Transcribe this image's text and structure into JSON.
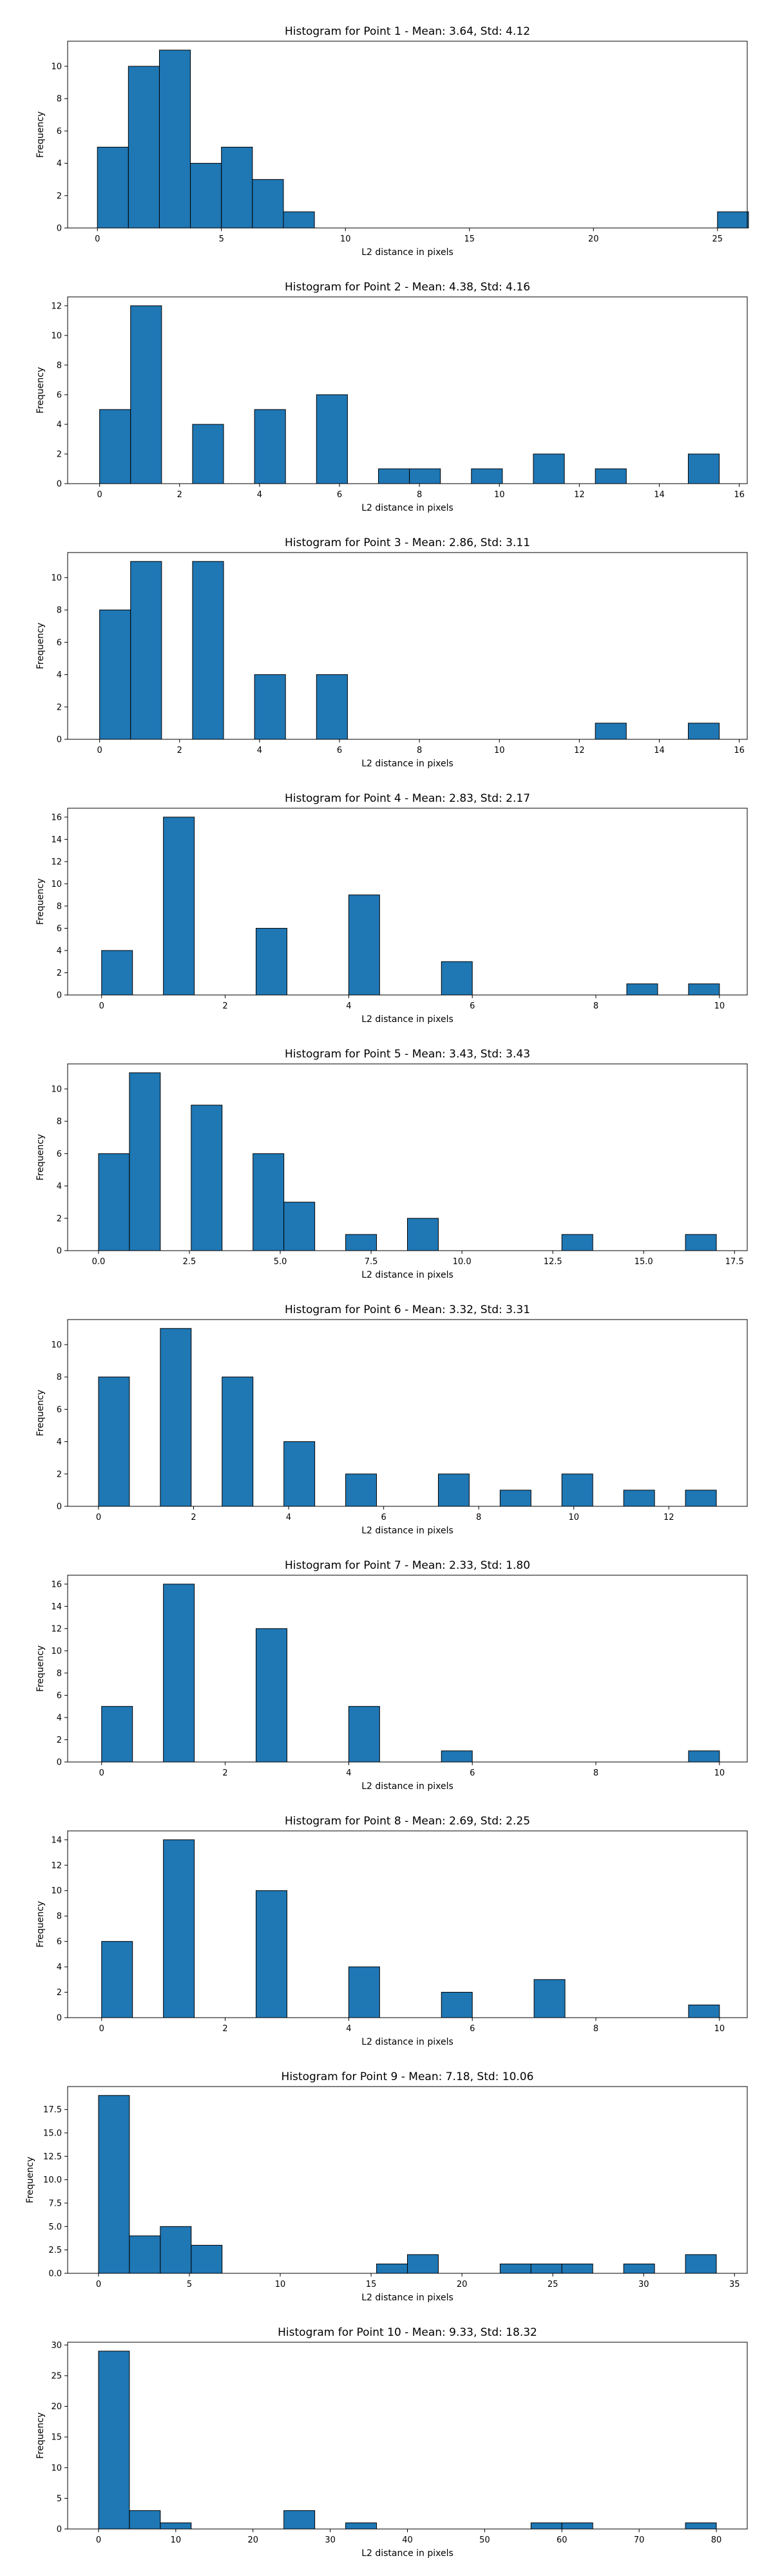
{
  "style": {
    "bar_color": "#1f77b4",
    "edge_color": "#000000",
    "background": "#ffffff"
  },
  "chart_data": [
    {
      "type": "bar",
      "title": "Histogram for Point 1 - Mean: 3.64, Std: 4.12",
      "xlabel": "L2 distance in pixels",
      "ylabel": "Frequency",
      "xlim": [
        -1.2,
        26.2
      ],
      "ylim": [
        0,
        11.55
      ],
      "xticks": [
        0,
        5,
        10,
        15,
        20,
        25
      ],
      "xtick_labels": [
        "0",
        "5",
        "10",
        "15",
        "20",
        "25"
      ],
      "yticks": [
        0,
        2,
        4,
        6,
        8,
        10
      ],
      "ytick_labels": [
        "0",
        "2",
        "4",
        "6",
        "8",
        "10"
      ],
      "bin_edges": [
        0,
        1.25,
        2.5,
        3.75,
        5,
        6.25,
        7.5,
        8.75,
        10,
        11.25,
        12.5,
        13.75,
        15,
        16.25,
        17.5,
        18.75,
        20,
        21.25,
        22.5,
        23.75,
        25,
        26.25
      ],
      "counts": [
        5,
        10,
        11,
        4,
        5,
        3,
        1,
        0,
        0,
        0,
        0,
        0,
        0,
        0,
        0,
        0,
        0,
        0,
        0,
        0,
        1
      ]
    },
    {
      "type": "bar",
      "title": "Histogram for Point 2 - Mean: 4.38, Std: 4.16",
      "xlabel": "L2 distance in pixels",
      "ylabel": "Frequency",
      "xlim": [
        -0.8,
        16.2
      ],
      "ylim": [
        0,
        12.6
      ],
      "xticks": [
        0,
        2,
        4,
        6,
        8,
        10,
        12,
        14,
        16
      ],
      "xtick_labels": [
        "0",
        "2",
        "4",
        "6",
        "8",
        "10",
        "12",
        "14",
        "16"
      ],
      "yticks": [
        0,
        2,
        4,
        6,
        8,
        10,
        12
      ],
      "ytick_labels": [
        "0",
        "2",
        "4",
        "6",
        "8",
        "10",
        "12"
      ],
      "bin_edges": [
        0,
        0.775,
        1.55,
        2.325,
        3.1,
        3.875,
        4.65,
        5.425,
        6.2,
        6.975,
        7.75,
        8.525,
        9.3,
        10.075,
        10.85,
        11.625,
        12.4,
        13.175,
        13.95,
        14.725,
        15.5
      ],
      "counts": [
        5,
        12,
        0,
        4,
        0,
        5,
        0,
        6,
        0,
        1,
        1,
        0,
        1,
        0,
        2,
        0,
        1,
        0,
        0,
        2
      ]
    },
    {
      "type": "bar",
      "title": "Histogram for Point 3 - Mean: 2.86, Std: 3.11",
      "xlabel": "L2 distance in pixels",
      "ylabel": "Frequency",
      "xlim": [
        -0.8,
        16.2
      ],
      "ylim": [
        0,
        11.55
      ],
      "xticks": [
        0,
        2,
        4,
        6,
        8,
        10,
        12,
        14,
        16
      ],
      "xtick_labels": [
        "0",
        "2",
        "4",
        "6",
        "8",
        "10",
        "12",
        "14",
        "16"
      ],
      "yticks": [
        0,
        2,
        4,
        6,
        8,
        10
      ],
      "ytick_labels": [
        "0",
        "2",
        "4",
        "6",
        "8",
        "10"
      ],
      "bin_edges": [
        0,
        0.775,
        1.55,
        2.325,
        3.1,
        3.875,
        4.65,
        5.425,
        6.2,
        6.975,
        7.75,
        8.525,
        9.3,
        10.075,
        10.85,
        11.625,
        12.4,
        13.175,
        13.95,
        14.725,
        15.5
      ],
      "counts": [
        8,
        11,
        0,
        11,
        0,
        4,
        0,
        4,
        0,
        0,
        0,
        0,
        0,
        0,
        0,
        0,
        1,
        0,
        0,
        1
      ]
    },
    {
      "type": "bar",
      "title": "Histogram for Point 4 - Mean: 2.83, Std: 2.17",
      "xlabel": "L2 distance in pixels",
      "ylabel": "Frequency",
      "xlim": [
        -0.55,
        10.45
      ],
      "ylim": [
        0,
        16.8
      ],
      "xticks": [
        0,
        2,
        4,
        6,
        8,
        10
      ],
      "xtick_labels": [
        "0",
        "2",
        "4",
        "6",
        "8",
        "10"
      ],
      "yticks": [
        0,
        2,
        4,
        6,
        8,
        10,
        12,
        14,
        16
      ],
      "ytick_labels": [
        "0",
        "2",
        "4",
        "6",
        "8",
        "10",
        "12",
        "14",
        "16"
      ],
      "bin_edges": [
        0,
        0.5,
        1,
        1.5,
        2,
        2.5,
        3,
        3.5,
        4,
        4.5,
        5,
        5.5,
        6,
        6.5,
        7,
        7.5,
        8,
        8.5,
        9,
        9.5,
        10
      ],
      "counts": [
        4,
        0,
        16,
        0,
        0,
        6,
        0,
        0,
        9,
        0,
        0,
        3,
        0,
        0,
        0,
        0,
        0,
        1,
        0,
        1
      ]
    },
    {
      "type": "bar",
      "title": "Histogram for Point 5 - Mean: 3.43, Std: 3.43",
      "xlabel": "L2 distance in pixels",
      "ylabel": "Frequency",
      "xlim": [
        -0.85,
        17.85
      ],
      "ylim": [
        0,
        11.55
      ],
      "xticks": [
        0,
        2.5,
        5,
        7.5,
        10,
        12.5,
        15,
        17.5
      ],
      "xtick_labels": [
        "0.0",
        "2.5",
        "5.0",
        "7.5",
        "10.0",
        "12.5",
        "15.0",
        "17.5"
      ],
      "yticks": [
        0,
        2,
        4,
        6,
        8,
        10
      ],
      "ytick_labels": [
        "0",
        "2",
        "4",
        "6",
        "8",
        "10"
      ],
      "bin_edges": [
        0,
        0.85,
        1.7,
        2.55,
        3.4,
        4.25,
        5.1,
        5.95,
        6.8,
        7.65,
        8.5,
        9.35,
        10.2,
        11.05,
        11.9,
        12.75,
        13.6,
        14.45,
        15.3,
        16.15,
        17
      ],
      "counts": [
        6,
        11,
        0,
        9,
        0,
        6,
        3,
        0,
        1,
        0,
        2,
        0,
        0,
        0,
        0,
        1,
        0,
        0,
        0,
        1
      ]
    },
    {
      "type": "bar",
      "title": "Histogram for Point 6 - Mean: 3.32, Std: 3.31",
      "xlabel": "L2 distance in pixels",
      "ylabel": "Frequency",
      "xlim": [
        -0.65,
        13.65
      ],
      "ylim": [
        0,
        11.55
      ],
      "xticks": [
        0,
        2,
        4,
        6,
        8,
        10,
        12
      ],
      "xtick_labels": [
        "0",
        "2",
        "4",
        "6",
        "8",
        "10",
        "12"
      ],
      "yticks": [
        0,
        2,
        4,
        6,
        8,
        10
      ],
      "ytick_labels": [
        "0",
        "2",
        "4",
        "6",
        "8",
        "10"
      ],
      "bin_edges": [
        0,
        0.65,
        1.3,
        1.95,
        2.6,
        3.25,
        3.9,
        4.55,
        5.2,
        5.85,
        6.5,
        7.15,
        7.8,
        8.45,
        9.1,
        9.75,
        10.4,
        11.05,
        11.7,
        12.35,
        13
      ],
      "counts": [
        8,
        0,
        11,
        0,
        8,
        0,
        4,
        0,
        2,
        0,
        0,
        2,
        0,
        1,
        0,
        2,
        0,
        1,
        0,
        1
      ]
    },
    {
      "type": "bar",
      "title": "Histogram for Point 7 - Mean: 2.33, Std: 1.80",
      "xlabel": "L2 distance in pixels",
      "ylabel": "Frequency",
      "xlim": [
        -0.55,
        10.45
      ],
      "ylim": [
        0,
        16.8
      ],
      "xticks": [
        0,
        2,
        4,
        6,
        8,
        10
      ],
      "xtick_labels": [
        "0",
        "2",
        "4",
        "6",
        "8",
        "10"
      ],
      "yticks": [
        0,
        2,
        4,
        6,
        8,
        10,
        12,
        14,
        16
      ],
      "ytick_labels": [
        "0",
        "2",
        "4",
        "6",
        "8",
        "10",
        "12",
        "14",
        "16"
      ],
      "bin_edges": [
        0,
        0.5,
        1,
        1.5,
        2,
        2.5,
        3,
        3.5,
        4,
        4.5,
        5,
        5.5,
        6,
        6.5,
        7,
        7.5,
        8,
        8.5,
        9,
        9.5,
        10
      ],
      "counts": [
        5,
        0,
        16,
        0,
        0,
        12,
        0,
        0,
        5,
        0,
        0,
        1,
        0,
        0,
        0,
        0,
        0,
        0,
        0,
        1
      ]
    },
    {
      "type": "bar",
      "title": "Histogram for Point 8 - Mean: 2.69, Std: 2.25",
      "xlabel": "L2 distance in pixels",
      "ylabel": "Frequency",
      "xlim": [
        -0.55,
        10.45
      ],
      "ylim": [
        0,
        14.7
      ],
      "xticks": [
        0,
        2,
        4,
        6,
        8,
        10
      ],
      "xtick_labels": [
        "0",
        "2",
        "4",
        "6",
        "8",
        "10"
      ],
      "yticks": [
        0,
        2,
        4,
        6,
        8,
        10,
        12,
        14
      ],
      "ytick_labels": [
        "0",
        "2",
        "4",
        "6",
        "8",
        "10",
        "12",
        "14"
      ],
      "bin_edges": [
        0,
        0.5,
        1,
        1.5,
        2,
        2.5,
        3,
        3.5,
        4,
        4.5,
        5,
        5.5,
        6,
        6.5,
        7,
        7.5,
        8,
        8.5,
        9,
        9.5,
        10
      ],
      "counts": [
        6,
        0,
        14,
        0,
        0,
        10,
        0,
        0,
        4,
        0,
        0,
        2,
        0,
        0,
        3,
        0,
        0,
        0,
        0,
        1
      ]
    },
    {
      "type": "bar",
      "title": "Histogram for Point 9 - Mean: 7.18, Std: 10.06",
      "xlabel": "L2 distance in pixels",
      "ylabel": "Frequency",
      "xlim": [
        -1.7,
        35.7
      ],
      "ylim": [
        0,
        19.95
      ],
      "xticks": [
        0,
        5,
        10,
        15,
        20,
        25,
        30,
        35
      ],
      "xtick_labels": [
        "0",
        "5",
        "10",
        "15",
        "20",
        "25",
        "30",
        "35"
      ],
      "yticks": [
        0,
        2.5,
        5,
        7.5,
        10,
        12.5,
        15,
        17.5
      ],
      "ytick_labels": [
        "0.0",
        "2.5",
        "5.0",
        "7.5",
        "10.0",
        "12.5",
        "15.0",
        "17.5"
      ],
      "bin_edges": [
        0,
        1.7,
        3.4,
        5.1,
        6.8,
        8.5,
        10.2,
        11.9,
        13.6,
        15.3,
        17,
        18.7,
        20.4,
        22.1,
        23.8,
        25.5,
        27.2,
        28.9,
        30.6,
        32.3,
        34
      ],
      "counts": [
        19,
        4,
        5,
        3,
        0,
        0,
        0,
        0,
        0,
        1,
        2,
        0,
        0,
        1,
        1,
        1,
        0,
        1,
        0,
        2
      ]
    },
    {
      "type": "bar",
      "title": "Histogram for Point 10 - Mean: 9.33, Std: 18.32",
      "xlabel": "L2 distance in pixels",
      "ylabel": "Frequency",
      "xlim": [
        -4,
        84
      ],
      "ylim": [
        0,
        30.45
      ],
      "xticks": [
        0,
        10,
        20,
        30,
        40,
        50,
        60,
        70,
        80
      ],
      "xtick_labels": [
        "0",
        "10",
        "20",
        "30",
        "40",
        "50",
        "60",
        "70",
        "80"
      ],
      "yticks": [
        0,
        5,
        10,
        15,
        20,
        25,
        30
      ],
      "ytick_labels": [
        "0",
        "5",
        "10",
        "15",
        "20",
        "25",
        "30"
      ],
      "bin_edges": [
        0,
        4,
        8,
        12,
        16,
        20,
        24,
        28,
        32,
        36,
        40,
        44,
        48,
        52,
        56,
        60,
        64,
        68,
        72,
        76,
        80
      ],
      "counts": [
        29,
        3,
        1,
        0,
        0,
        0,
        3,
        0,
        1,
        0,
        0,
        0,
        0,
        0,
        1,
        1,
        0,
        0,
        0,
        1
      ]
    }
  ]
}
